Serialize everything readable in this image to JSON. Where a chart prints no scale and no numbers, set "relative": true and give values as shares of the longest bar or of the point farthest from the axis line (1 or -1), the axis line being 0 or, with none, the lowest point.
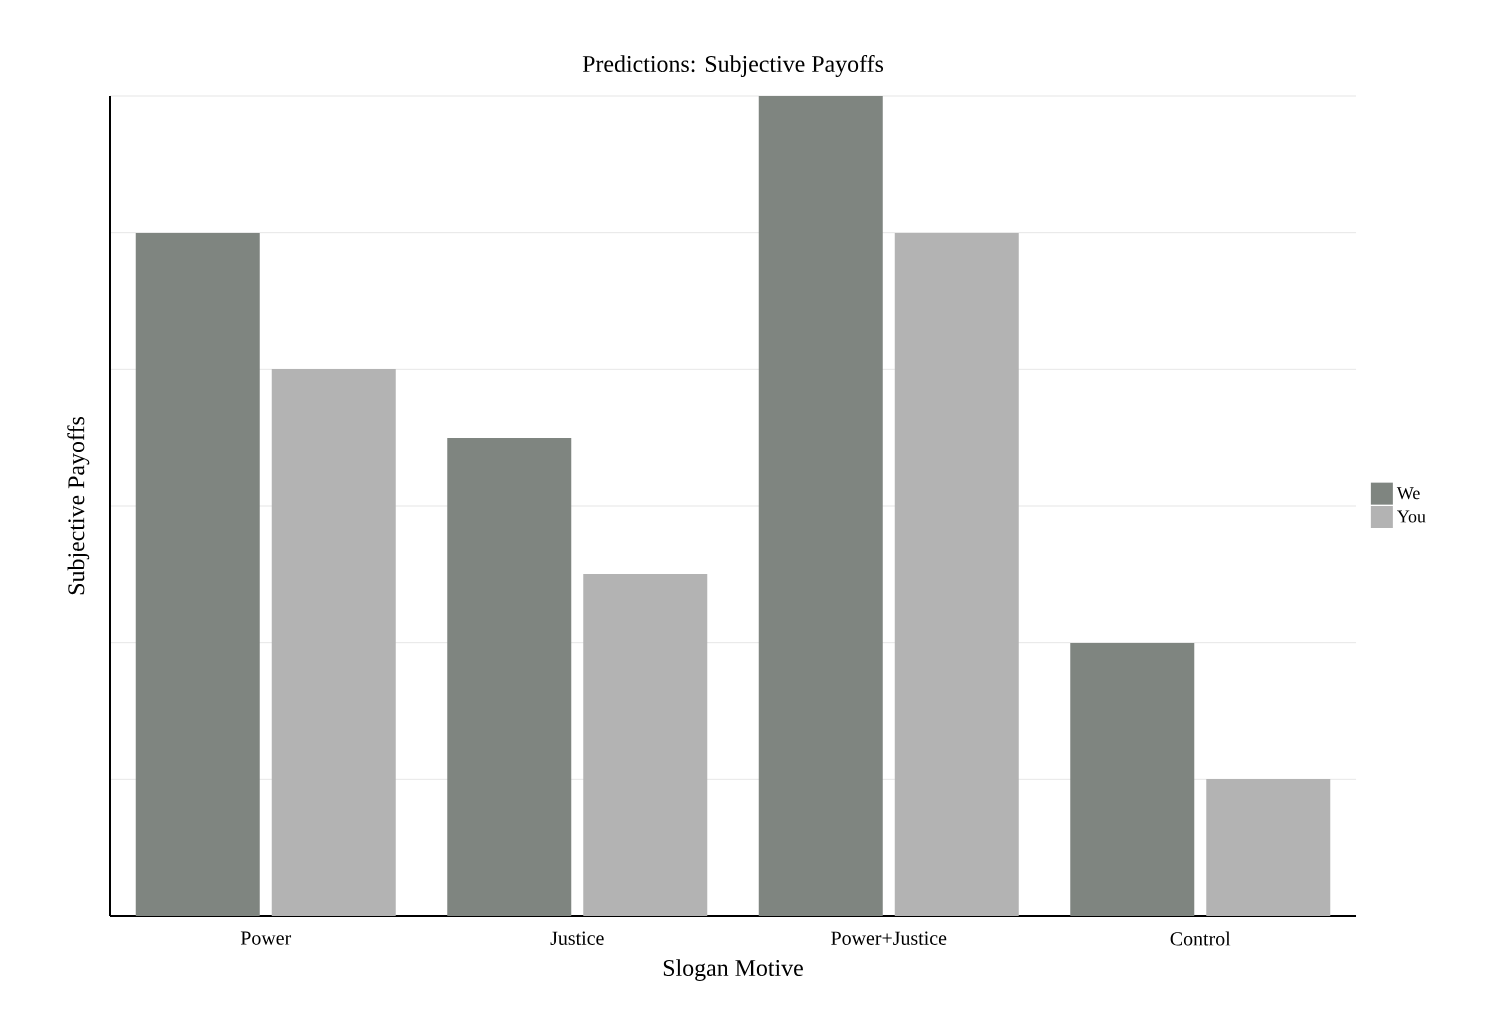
{
  "chart_data": {
    "type": "bar",
    "title": "Predictions: Subjective Payoffs",
    "xlabel": "Slogan Motive",
    "ylabel": "Subjective Payoffs",
    "categories": [
      "Power",
      "Justice",
      "Power+Justice",
      "Control"
    ],
    "relative": true,
    "grid": "y",
    "legend": "right",
    "series": [
      {
        "name": "We",
        "color": "#7f8580",
        "values": [
          0.833,
          0.583,
          1,
          0.333
        ]
      },
      {
        "name": "You",
        "color": "#b3b3b3",
        "values": [
          0.667,
          0.417,
          0.833,
          0.167
        ]
      }
    ]
  }
}
